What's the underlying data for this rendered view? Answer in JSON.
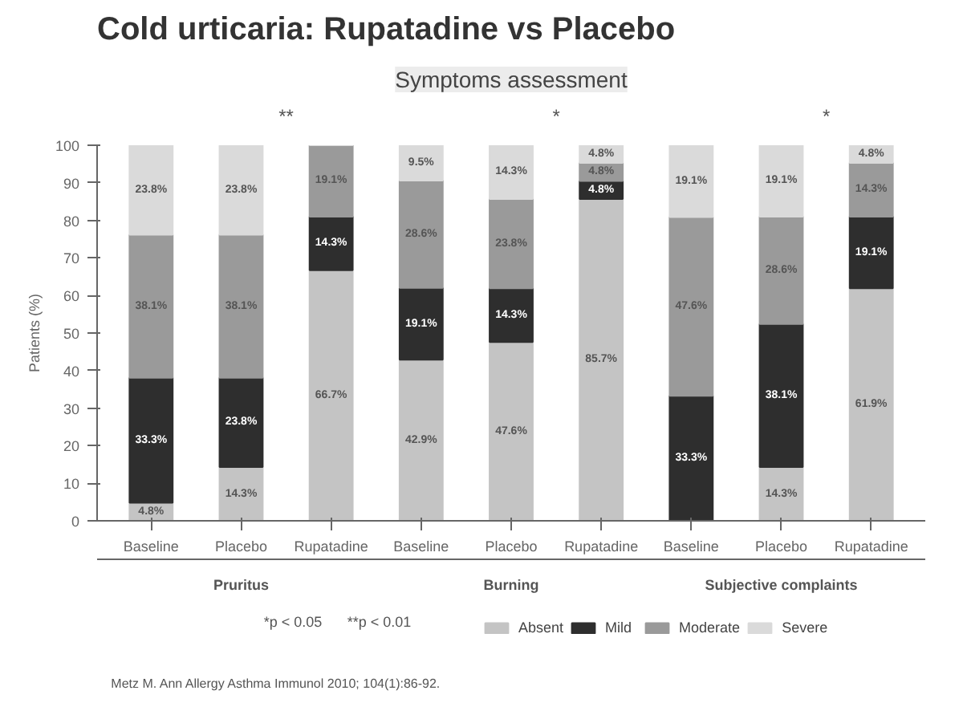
{
  "chart_data": {
    "type": "bar",
    "stacked": true,
    "title": "Cold urticaria: Rupatadine vs Placebo",
    "subtitle": "Symptoms assessment",
    "ylabel": "Patients (%)",
    "categories": [
      "Baseline",
      "Placebo",
      "Rupatadine",
      "Baseline",
      "Placebo",
      "Rupatadine",
      "Baseline",
      "Placebo",
      "Rupatadine"
    ],
    "series": [
      {
        "name": "Absent",
        "color": "#c4c4c4",
        "values": [
          4.8,
          14.3,
          66.7,
          42.9,
          47.6,
          85.7,
          0,
          14.3,
          61.9
        ],
        "value_labels": [
          "4.8%",
          "14.3%",
          "66.7%",
          "42.9%",
          "47.6%",
          "85.7%",
          null,
          "14.3%",
          "61.9%"
        ]
      },
      {
        "name": "Mild",
        "color": "#2e2e2e",
        "values": [
          33.3,
          23.8,
          14.3,
          19.1,
          14.3,
          4.8,
          33.3,
          38.1,
          19.1
        ],
        "value_labels": [
          "33.3%",
          "23.8%",
          "14.3%",
          "19.1%",
          "14.3%",
          "4.8%",
          "33.3%",
          "38.1%",
          "19.1%"
        ]
      },
      {
        "name": "Moderate",
        "color": "#9a9a9a",
        "values": [
          38.1,
          38.1,
          19.1,
          28.6,
          23.8,
          4.8,
          47.6,
          28.6,
          14.3
        ],
        "value_labels": [
          "38.1%",
          "38.1%",
          "19.1%",
          "28.6%",
          "23.8%",
          "4.8%",
          "47.6%",
          "28.6%",
          "14.3%"
        ]
      },
      {
        "name": "Severe",
        "color": "#dadada",
        "values": [
          23.8,
          23.8,
          0,
          9.5,
          14.3,
          4.8,
          19.1,
          19.1,
          4.8
        ],
        "value_labels": [
          "23.8%",
          "23.8%",
          null,
          "9.5%",
          "14.3%",
          "4.8%",
          "19.1%",
          "19.1%",
          "4.8%"
        ]
      }
    ],
    "ylim": [
      0,
      100
    ],
    "yticks": [
      0,
      10,
      20,
      30,
      40,
      50,
      60,
      70,
      80,
      90,
      100
    ],
    "grid": false,
    "legend": "bottom",
    "annotations": [
      "Pruritus",
      "Burning",
      "Subjective complaints",
      "**",
      "*",
      "*",
      "*p < 0.05",
      "**p < 0.01",
      "Metz M. Ann Allergy Asthma Immunol 2010; 104(1):86-92."
    ]
  }
}
